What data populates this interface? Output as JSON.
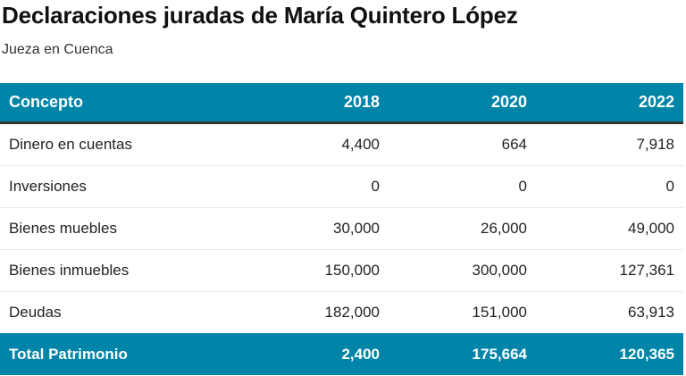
{
  "title": "Declaraciones juradas de María Quintero López",
  "subtitle": "Jueza en Cuenca",
  "colors": {
    "header_bg": "#0084a8",
    "header_text": "#ffffff",
    "header_border": "#333333",
    "row_divider": "#e8e8e8"
  },
  "table": {
    "columns": [
      "Concepto",
      "2018",
      "2020",
      "2022"
    ],
    "rows": [
      {
        "concepto": "Dinero en cuentas",
        "values": [
          "4,400",
          "664",
          "7,918"
        ]
      },
      {
        "concepto": "Inversiones",
        "values": [
          "0",
          "0",
          "0"
        ]
      },
      {
        "concepto": "Bienes muebles",
        "values": [
          "30,000",
          "26,000",
          "49,000"
        ]
      },
      {
        "concepto": "Bienes inmuebles",
        "values": [
          "150,000",
          "300,000",
          "127,361"
        ]
      },
      {
        "concepto": "Deudas",
        "values": [
          "182,000",
          "151,000",
          "63,913"
        ]
      }
    ],
    "total": {
      "concepto": "Total Patrimonio",
      "values": [
        "2,400",
        "175,664",
        "120,365"
      ]
    }
  }
}
